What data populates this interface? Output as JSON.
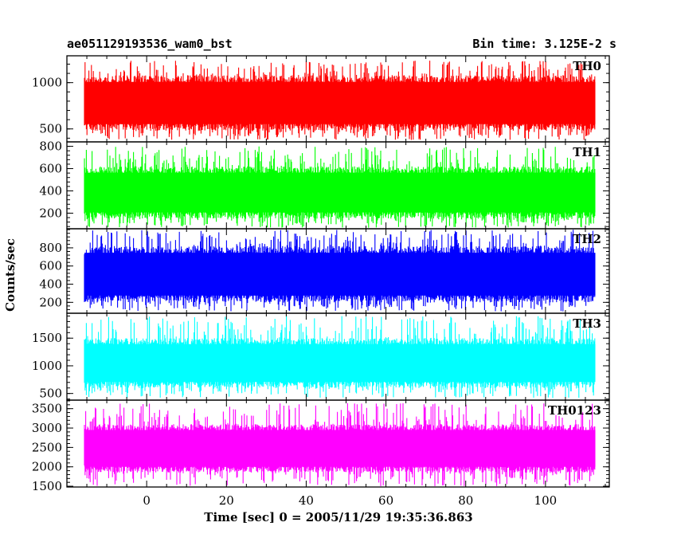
{
  "title_left": "ae051129193536_wam0_bst",
  "title_right": "Bin time: 3.125E-2 s",
  "ylabel": "Counts/sec",
  "xlabel": "Time [sec] 0 = 2005/11/29 19:35:36.863",
  "chart_data": {
    "type": "line",
    "x_range": [
      -15.6,
      112.5
    ],
    "xlim": [
      -20,
      116
    ],
    "x_ticks": [
      0,
      20,
      40,
      60,
      80,
      100
    ],
    "x_tick_labels": [
      "0",
      "20",
      "40",
      "60",
      "80",
      "100"
    ],
    "bin_time_s": 0.03125,
    "panels": [
      {
        "name": "TH0",
        "color": "#ff0000",
        "ylim": [
          360,
          1290
        ],
        "ticks": [
          500,
          1000
        ],
        "tick_labels": [
          "500",
          "1000"
        ],
        "band": [
          480,
          1080
        ],
        "spike_lo": 380,
        "spike_hi": 1240
      },
      {
        "name": "TH1",
        "color": "#00ff00",
        "ylim": [
          60,
          840
        ],
        "ticks": [
          200,
          400,
          600,
          800
        ],
        "tick_labels": [
          "200",
          "400",
          "600",
          "800"
        ],
        "band": [
          150,
          620
        ],
        "spike_lo": 70,
        "spike_hi": 800
      },
      {
        "name": "TH2",
        "color": "#0000ff",
        "ylim": [
          80,
          1010
        ],
        "ticks": [
          200,
          400,
          600,
          800
        ],
        "tick_labels": [
          "200",
          "400",
          "600",
          "800"
        ],
        "band": [
          200,
          820
        ],
        "spike_lo": 100,
        "spike_hi": 1000
      },
      {
        "name": "TH3",
        "color": "#00ffff",
        "ylim": [
          380,
          1950
        ],
        "ticks": [
          500,
          1000,
          1500
        ],
        "tick_labels": [
          "500",
          "1000",
          "1500"
        ],
        "band": [
          600,
          1500
        ],
        "spike_lo": 420,
        "spike_hi": 1900
      },
      {
        "name": "TH0123",
        "color": "#ff00ff",
        "ylim": [
          1480,
          3720
        ],
        "ticks": [
          1500,
          2000,
          2500,
          3000,
          3500
        ],
        "tick_labels": [
          "1500",
          "2000",
          "2500",
          "3000",
          "3500"
        ],
        "band": [
          1850,
          3100
        ],
        "spike_lo": 1500,
        "spike_hi": 3650
      }
    ]
  }
}
